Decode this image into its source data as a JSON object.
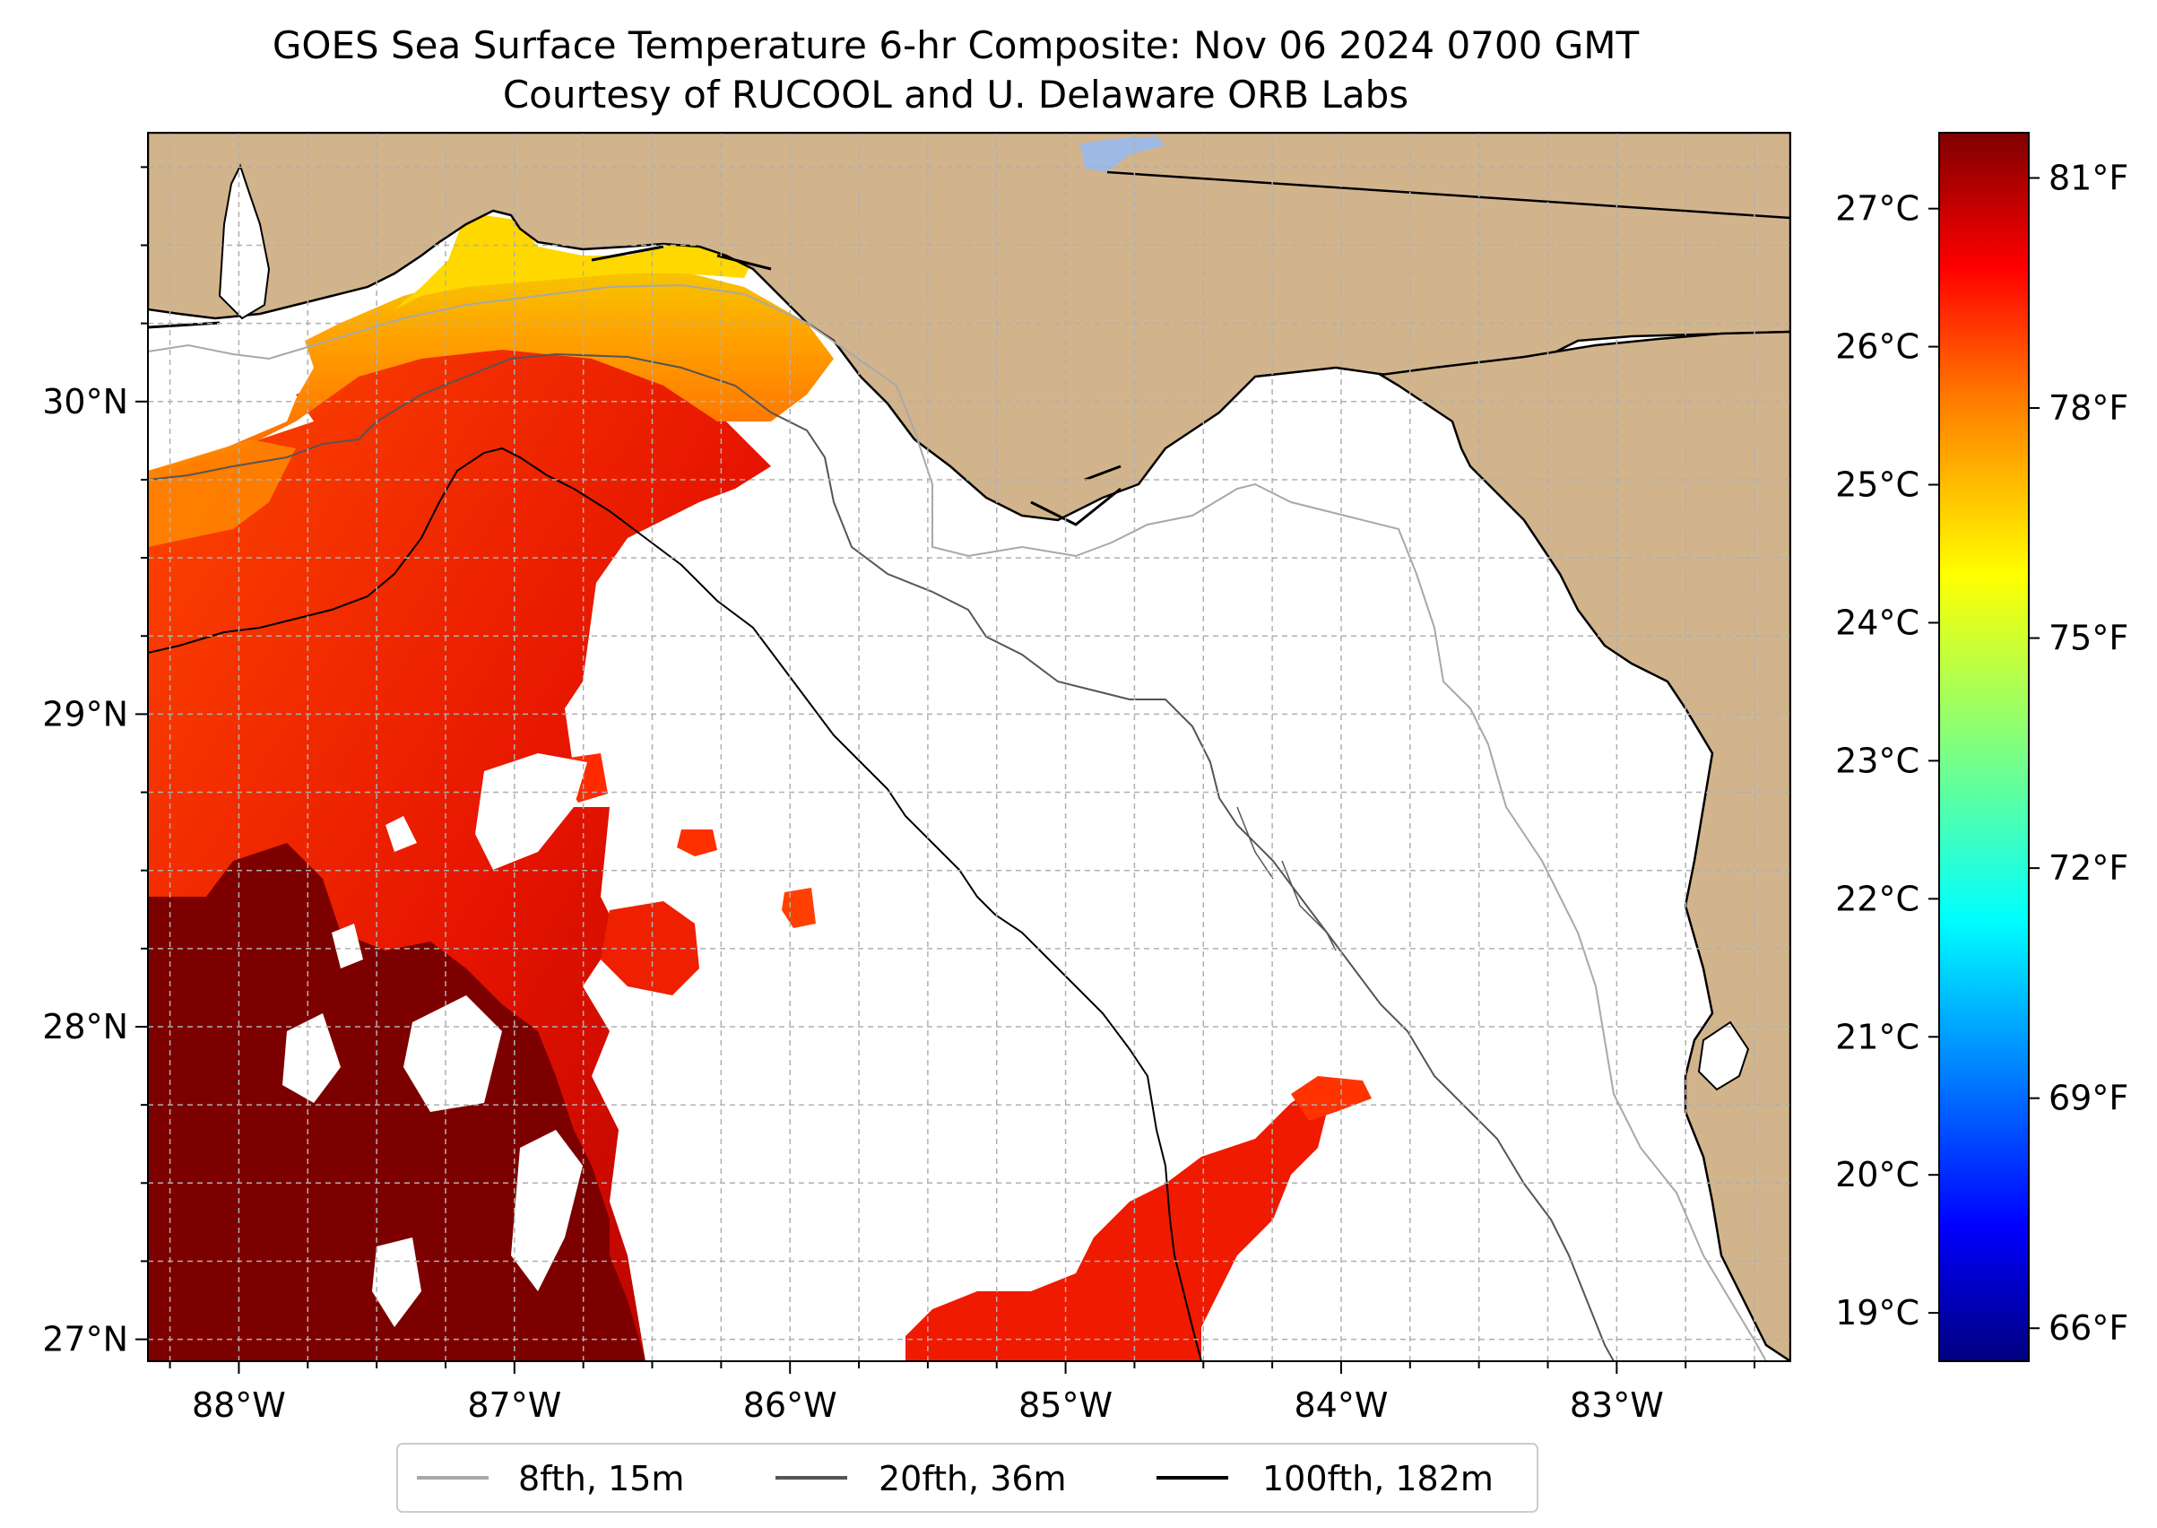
{
  "title_line1": "GOES Sea Surface Temperature 6-hr Composite: Nov 06 2024 0700 GMT",
  "title_line2": "Courtesy of RUCOOL and U. Delaware ORB Labs",
  "map": {
    "lon_range": [
      -88.33,
      -82.37
    ],
    "lat_range": [
      26.93,
      30.86
    ],
    "lon_ticks": [
      "88°W",
      "87°W",
      "86°W",
      "85°W",
      "84°W",
      "83°W"
    ],
    "lat_ticks": [
      "27°N",
      "28°N",
      "29°N",
      "30°N"
    ],
    "land_color": "#d2b48c",
    "ocean_color": "#ffffff",
    "lake_color": "#9db9e4",
    "grid": "dashed"
  },
  "colorbar": {
    "celsius_labels": [
      "27°C",
      "26°C",
      "25°C",
      "24°C",
      "23°C",
      "22°C",
      "21°C",
      "20°C",
      "19°C"
    ],
    "fahrenheit_labels": [
      "81°F",
      "78°F",
      "75°F",
      "72°F",
      "69°F",
      "66°F"
    ],
    "colormap": "jet",
    "colors": [
      "#00007f",
      "#0000ff",
      "#007fff",
      "#00ffff",
      "#7fff7f",
      "#ffff00",
      "#ff7f00",
      "#ff0000",
      "#7f0000"
    ]
  },
  "legend": {
    "items": [
      {
        "label": "8fth, 15m",
        "color": "#a8a8a8"
      },
      {
        "label": "20fth, 36m",
        "color": "#555555"
      },
      {
        "label": "100fth, 182m",
        "color": "#000000"
      }
    ],
    "placement": "bottom-center"
  }
}
